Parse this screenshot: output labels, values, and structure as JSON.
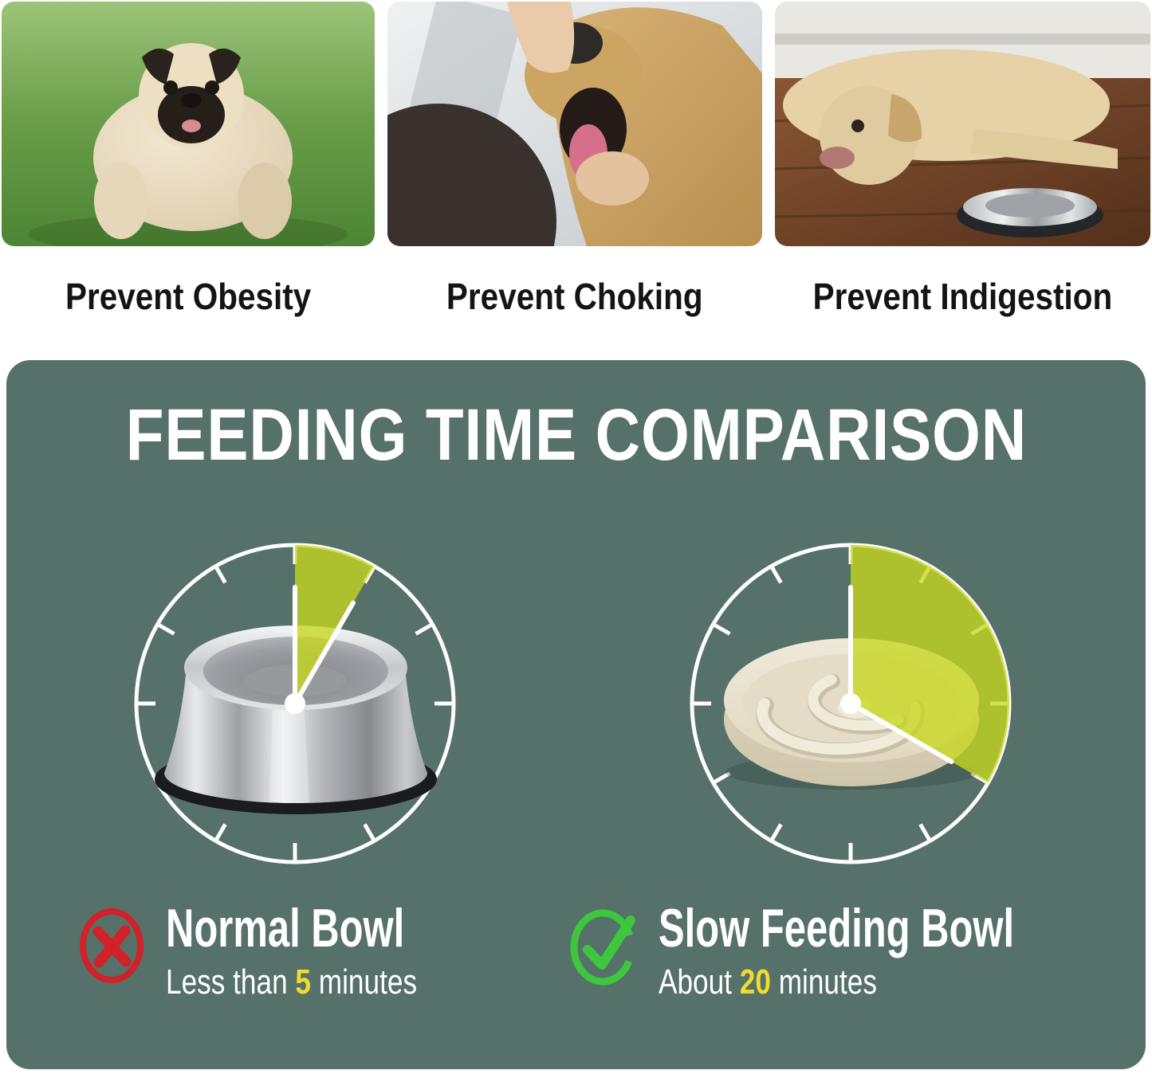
{
  "benefits": {
    "items": [
      {
        "caption": "Prevent Obesity",
        "photo": "overweight-pug-standing-on-grass"
      },
      {
        "caption": "Prevent Choking",
        "photo": "hand-checking-golden-retriever-mouth"
      },
      {
        "caption": "Prevent Indigestion",
        "photo": "labrador-lying-on-wood-floor-beside-steel-bowl"
      }
    ]
  },
  "panel": {
    "title": "FEEDING TIME COMPARISON",
    "left_clock": {
      "minutes": 5,
      "bowl": "normal-stainless-steel-bowl"
    },
    "right_clock": {
      "minutes": 20,
      "bowl": "slow-feeder-maze-bowl"
    },
    "left_label": {
      "icon": "red-x-icon",
      "title": "Normal Bowl",
      "sub_prefix": "Less than ",
      "sub_value": "5",
      "sub_suffix": " minutes"
    },
    "right_label": {
      "icon": "green-check-icon",
      "title": "Slow Feeding Bowl",
      "sub_prefix": "About ",
      "sub_value": "20",
      "sub_suffix": " minutes"
    },
    "colors": {
      "panel_bg": "#55716a",
      "wedge_yellow_green": "#c6d71d",
      "number_yellow": "#f0dc2e",
      "x_red": "#d22128",
      "check_green": "#3ec73c",
      "dial_white": "#ffffff"
    }
  }
}
